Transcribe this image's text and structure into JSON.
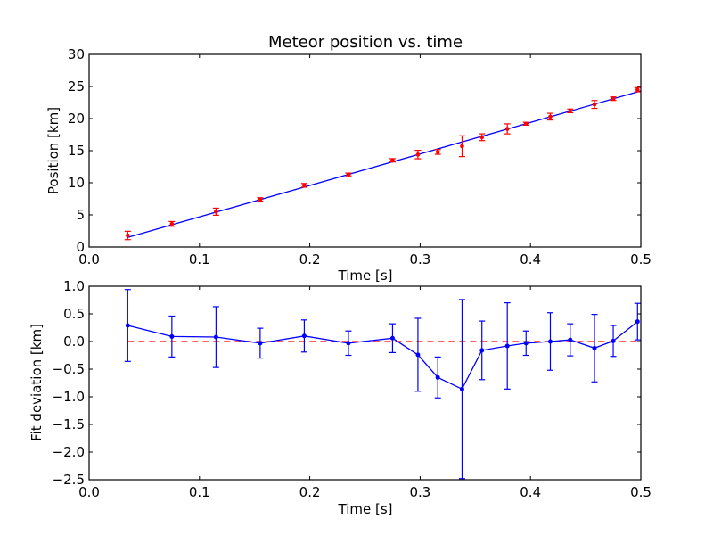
{
  "colors": {
    "fit_line": "#0000ff",
    "measurement": "#ff0000",
    "deviation": "#0000ff",
    "zero_line": "#ff0000"
  },
  "chart_data": [
    {
      "type": "scatter",
      "title": "Meteor position vs. time",
      "xlabel": "Time [s]",
      "ylabel": "Position [km]",
      "xlim": [
        0.0,
        0.5
      ],
      "ylim": [
        0,
        30
      ],
      "xticks": [
        "0.0",
        "0.1",
        "0.2",
        "0.3",
        "0.4",
        "0.5"
      ],
      "yticks": [
        "0",
        "5",
        "10",
        "15",
        "20",
        "25",
        "30"
      ],
      "grid": false,
      "series": [
        {
          "name": "measurements",
          "style": "red points with error bars",
          "x": [
            0.035,
            0.075,
            0.115,
            0.155,
            0.195,
            0.235,
            0.275,
            0.298,
            0.316,
            0.338,
            0.356,
            0.379,
            0.396,
            0.418,
            0.436,
            0.458,
            0.475,
            0.497
          ],
          "y": [
            1.8,
            3.6,
            5.5,
            7.4,
            9.6,
            11.3,
            13.5,
            14.4,
            14.8,
            15.7,
            17.1,
            18.4,
            19.2,
            20.3,
            21.2,
            22.2,
            23.1,
            24.5
          ],
          "yerr": [
            0.65,
            0.37,
            0.55,
            0.27,
            0.29,
            0.22,
            0.26,
            0.66,
            0.37,
            1.62,
            0.53,
            0.78,
            0.22,
            0.52,
            0.29,
            0.61,
            0.28,
            0.33
          ]
        },
        {
          "name": "fit",
          "style": "blue line",
          "x": [
            0.035,
            0.5
          ],
          "y": [
            1.5,
            24.3
          ]
        }
      ]
    },
    {
      "type": "line",
      "title": "",
      "xlabel": "Time [s]",
      "ylabel": "Fit deviation [km]",
      "xlim": [
        0.0,
        0.5
      ],
      "ylim": [
        -2.5,
        1.0
      ],
      "xticks": [
        "0.0",
        "0.1",
        "0.2",
        "0.3",
        "0.4",
        "0.5"
      ],
      "yticks": [
        "−2.5",
        "−2.0",
        "−1.5",
        "−1.0",
        "−0.5",
        "0.0",
        "0.5",
        "1.0"
      ],
      "ytick_values": [
        -2.5,
        -2.0,
        -1.5,
        -1.0,
        -0.5,
        0.0,
        0.5,
        1.0
      ],
      "grid": false,
      "series": [
        {
          "name": "deviation",
          "style": "blue line with points and error bars",
          "x": [
            0.035,
            0.075,
            0.115,
            0.155,
            0.195,
            0.235,
            0.275,
            0.298,
            0.316,
            0.338,
            0.356,
            0.379,
            0.396,
            0.418,
            0.436,
            0.458,
            0.475,
            0.497
          ],
          "y": [
            0.29,
            0.09,
            0.08,
            -0.03,
            0.1,
            -0.03,
            0.06,
            -0.24,
            -0.65,
            -0.86,
            -0.16,
            -0.08,
            -0.03,
            0.0,
            0.03,
            -0.12,
            0.01,
            0.36
          ],
          "yerr": [
            0.65,
            0.37,
            0.55,
            0.27,
            0.29,
            0.22,
            0.26,
            0.66,
            0.37,
            1.62,
            0.53,
            0.78,
            0.22,
            0.52,
            0.29,
            0.61,
            0.28,
            0.33
          ]
        },
        {
          "name": "zero",
          "style": "red dashed line",
          "x": [
            0.035,
            0.5
          ],
          "y": [
            0.0,
            0.0
          ]
        }
      ]
    }
  ]
}
